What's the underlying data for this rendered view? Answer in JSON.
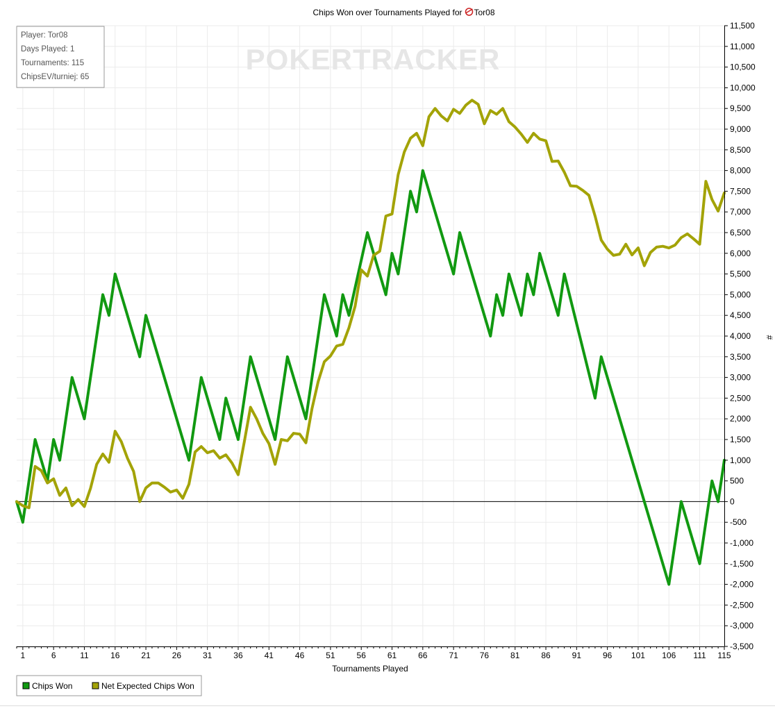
{
  "chart_data": {
    "type": "line",
    "title": "Chips Won over Tournaments Played for",
    "title_player": "Tor08",
    "xlabel": "Tournaments Played",
    "ylabel": "#",
    "xlim": [
      0,
      115
    ],
    "ylim": [
      -3500,
      11500
    ],
    "x_ticks": [
      1,
      6,
      11,
      16,
      21,
      26,
      31,
      36,
      41,
      46,
      51,
      56,
      61,
      66,
      71,
      76,
      81,
      86,
      91,
      96,
      101,
      106,
      111,
      115
    ],
    "y_ticks": [
      -3500,
      -3000,
      -2500,
      -2000,
      -1500,
      -1000,
      -500,
      0,
      500,
      1000,
      1500,
      2000,
      2500,
      3000,
      3500,
      4000,
      4500,
      5000,
      5500,
      6000,
      6500,
      7000,
      7500,
      8000,
      8500,
      9000,
      9500,
      10000,
      10500,
      11000,
      11500
    ],
    "y_tick_labels": [
      "-3,500",
      "-3,000",
      "-2,500",
      "-2,000",
      "-1,500",
      "-1,000",
      "-500",
      "0",
      "500",
      "1,000",
      "1,500",
      "2,000",
      "2,500",
      "3,000",
      "3,500",
      "4,000",
      "4,500",
      "5,000",
      "5,500",
      "6,000",
      "6,500",
      "7,000",
      "7,500",
      "8,000",
      "8,500",
      "9,000",
      "9,500",
      "10,000",
      "10,500",
      "11,000",
      "11,500"
    ],
    "grid": true,
    "legend_position": "bottom-left",
    "watermark": "POKERTRACKER",
    "series": [
      {
        "name": "Chips Won",
        "color": "#119911",
        "points": [
          [
            0,
            0
          ],
          [
            1,
            -500
          ],
          [
            3,
            1500
          ],
          [
            5,
            500
          ],
          [
            6,
            1500
          ],
          [
            7,
            1000
          ],
          [
            9,
            3000
          ],
          [
            11,
            2000
          ],
          [
            14,
            5000
          ],
          [
            15,
            4500
          ],
          [
            16,
            5500
          ],
          [
            20,
            3500
          ],
          [
            21,
            4500
          ],
          [
            28,
            1000
          ],
          [
            30,
            3000
          ],
          [
            33,
            1500
          ],
          [
            34,
            2500
          ],
          [
            36,
            1500
          ],
          [
            38,
            3500
          ],
          [
            42,
            1500
          ],
          [
            44,
            3500
          ],
          [
            47,
            2000
          ],
          [
            50,
            5000
          ],
          [
            52,
            4000
          ],
          [
            53,
            5000
          ],
          [
            54,
            4500
          ],
          [
            57,
            6500
          ],
          [
            60,
            5000
          ],
          [
            61,
            6000
          ],
          [
            62,
            5500
          ],
          [
            64,
            7500
          ],
          [
            65,
            7000
          ],
          [
            66,
            8000
          ],
          [
            71,
            5500
          ],
          [
            72,
            6500
          ],
          [
            77,
            4000
          ],
          [
            78,
            5000
          ],
          [
            79,
            4500
          ],
          [
            80,
            5500
          ],
          [
            82,
            4500
          ],
          [
            83,
            5500
          ],
          [
            84,
            5000
          ],
          [
            85,
            6000
          ],
          [
            88,
            4500
          ],
          [
            89,
            5500
          ],
          [
            94,
            2500
          ],
          [
            95,
            3500
          ],
          [
            106,
            -2000
          ],
          [
            108,
            0
          ],
          [
            111,
            -1500
          ],
          [
            113,
            500
          ],
          [
            114,
            0
          ],
          [
            115,
            1000
          ]
        ]
      },
      {
        "name": "Net Expected Chips Won",
        "color": "#a3a307",
        "points": [
          [
            0,
            0
          ],
          [
            1,
            -100
          ],
          [
            2,
            -150
          ],
          [
            3,
            850
          ],
          [
            4,
            750
          ],
          [
            5,
            450
          ],
          [
            6,
            550
          ],
          [
            7,
            150
          ],
          [
            8,
            330
          ],
          [
            9,
            -100
          ],
          [
            10,
            50
          ],
          [
            11,
            -120
          ],
          [
            12,
            320
          ],
          [
            13,
            900
          ],
          [
            14,
            1150
          ],
          [
            15,
            950
          ],
          [
            16,
            1700
          ],
          [
            17,
            1450
          ],
          [
            18,
            1050
          ],
          [
            19,
            730
          ],
          [
            20,
            0
          ],
          [
            21,
            330
          ],
          [
            22,
            450
          ],
          [
            23,
            450
          ],
          [
            24,
            350
          ],
          [
            25,
            230
          ],
          [
            26,
            280
          ],
          [
            27,
            80
          ],
          [
            28,
            420
          ],
          [
            29,
            1200
          ],
          [
            30,
            1330
          ],
          [
            31,
            1180
          ],
          [
            32,
            1230
          ],
          [
            33,
            1050
          ],
          [
            34,
            1130
          ],
          [
            35,
            930
          ],
          [
            36,
            650
          ],
          [
            37,
            1450
          ],
          [
            38,
            2280
          ],
          [
            39,
            2000
          ],
          [
            40,
            1650
          ],
          [
            41,
            1400
          ],
          [
            42,
            900
          ],
          [
            43,
            1500
          ],
          [
            44,
            1470
          ],
          [
            45,
            1650
          ],
          [
            46,
            1630
          ],
          [
            47,
            1420
          ],
          [
            48,
            2250
          ],
          [
            49,
            2900
          ],
          [
            50,
            3380
          ],
          [
            51,
            3520
          ],
          [
            52,
            3760
          ],
          [
            53,
            3800
          ],
          [
            54,
            4200
          ],
          [
            55,
            4720
          ],
          [
            56,
            5600
          ],
          [
            57,
            5450
          ],
          [
            58,
            5950
          ],
          [
            59,
            6050
          ],
          [
            60,
            6900
          ],
          [
            61,
            6950
          ],
          [
            62,
            7900
          ],
          [
            63,
            8450
          ],
          [
            64,
            8780
          ],
          [
            65,
            8900
          ],
          [
            66,
            8600
          ],
          [
            67,
            9300
          ],
          [
            68,
            9500
          ],
          [
            69,
            9320
          ],
          [
            70,
            9200
          ],
          [
            71,
            9480
          ],
          [
            72,
            9380
          ],
          [
            73,
            9580
          ],
          [
            74,
            9700
          ],
          [
            75,
            9600
          ],
          [
            76,
            9130
          ],
          [
            77,
            9450
          ],
          [
            78,
            9360
          ],
          [
            79,
            9500
          ],
          [
            80,
            9180
          ],
          [
            81,
            9050
          ],
          [
            82,
            8880
          ],
          [
            83,
            8680
          ],
          [
            84,
            8900
          ],
          [
            85,
            8760
          ],
          [
            86,
            8720
          ],
          [
            87,
            8220
          ],
          [
            88,
            8230
          ],
          [
            89,
            7960
          ],
          [
            90,
            7630
          ],
          [
            91,
            7620
          ],
          [
            92,
            7520
          ],
          [
            93,
            7400
          ],
          [
            94,
            6900
          ],
          [
            95,
            6320
          ],
          [
            96,
            6100
          ],
          [
            97,
            5950
          ],
          [
            98,
            5980
          ],
          [
            99,
            6220
          ],
          [
            100,
            5960
          ],
          [
            101,
            6130
          ],
          [
            102,
            5700
          ],
          [
            103,
            6020
          ],
          [
            104,
            6150
          ],
          [
            105,
            6170
          ],
          [
            106,
            6130
          ],
          [
            107,
            6200
          ],
          [
            108,
            6380
          ],
          [
            109,
            6470
          ],
          [
            110,
            6350
          ],
          [
            111,
            6220
          ],
          [
            112,
            7740
          ],
          [
            113,
            7300
          ],
          [
            114,
            7020
          ],
          [
            115,
            7460
          ]
        ]
      }
    ]
  },
  "info_box": {
    "player": "Player: Tor08",
    "days_played": "Days Played: 1",
    "tournaments": "Tournaments: 115",
    "chips_ev": "ChipsEV/turniej: 65"
  },
  "legend": {
    "items": [
      {
        "label": "Chips Won",
        "color": "#119911"
      },
      {
        "label": "Net Expected Chips Won",
        "color": "#a3a307"
      }
    ]
  },
  "colors": {
    "grid": "#ebebeb",
    "axis": "#000000",
    "zero_line": "#000000",
    "watermark": "#e6e6e6",
    "info_border": "#999999"
  }
}
